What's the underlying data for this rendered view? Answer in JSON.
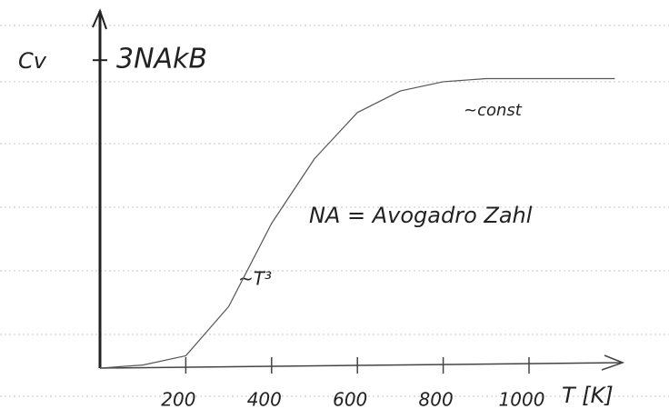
{
  "chart_data": {
    "type": "line",
    "y_label": "Cv",
    "x_label": "T [K]",
    "annotations": [
      "~const",
      "NA = Avogadro Zahl",
      "~T³"
    ],
    "x": [
      0,
      100,
      200,
      300,
      400,
      500,
      600,
      700,
      800,
      900,
      1000,
      1100,
      1200
    ],
    "series": [
      {
        "color": "#555555",
        "values": [
          0,
          0.01,
          0.04,
          0.2,
          0.47,
          0.68,
          0.83,
          0.9,
          0.93,
          0.94,
          0.94,
          0.94,
          0.94
        ]
      }
    ],
    "xlim": [
      0,
      1250
    ],
    "ylim": [
      0,
      1.16
    ],
    "xticks": [
      200,
      400,
      600,
      800,
      1000
    ],
    "yticks": [
      {
        "value": 1,
        "label": "3NAkB"
      }
    ],
    "grid": false
  }
}
